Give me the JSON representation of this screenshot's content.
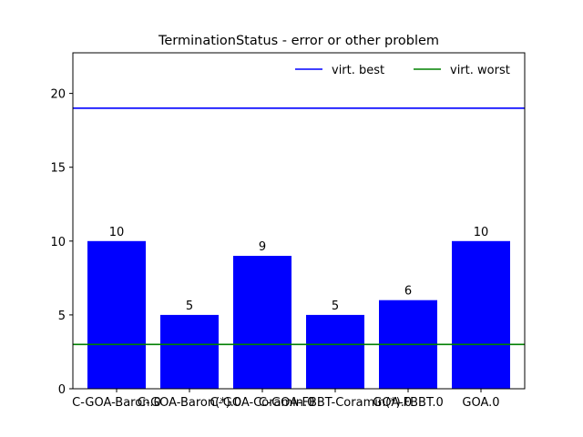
{
  "chart_data": {
    "type": "bar",
    "title": "TerminationStatus - error or other problem",
    "xlabel": "",
    "ylabel": "",
    "categories": [
      "C-GOA-Baron.0",
      "C-GOA-Baron(*).0",
      "C-GOA-Coramin.0",
      "C-GOA-FBBT-Coramin(*).0",
      "GOA-FBBT.0",
      "GOA.0"
    ],
    "values": [
      10,
      5,
      9,
      5,
      6,
      10
    ],
    "bar_color": "#0000ff",
    "ylim": [
      0,
      22.75
    ],
    "yticks": [
      0,
      5,
      10,
      15,
      20
    ],
    "hlines": [
      {
        "name": "virt. best",
        "value": 19,
        "color": "#0000ff"
      },
      {
        "name": "virt. worst",
        "value": 3,
        "color": "#008000"
      }
    ],
    "legend_position": "top-right",
    "grid": false
  }
}
